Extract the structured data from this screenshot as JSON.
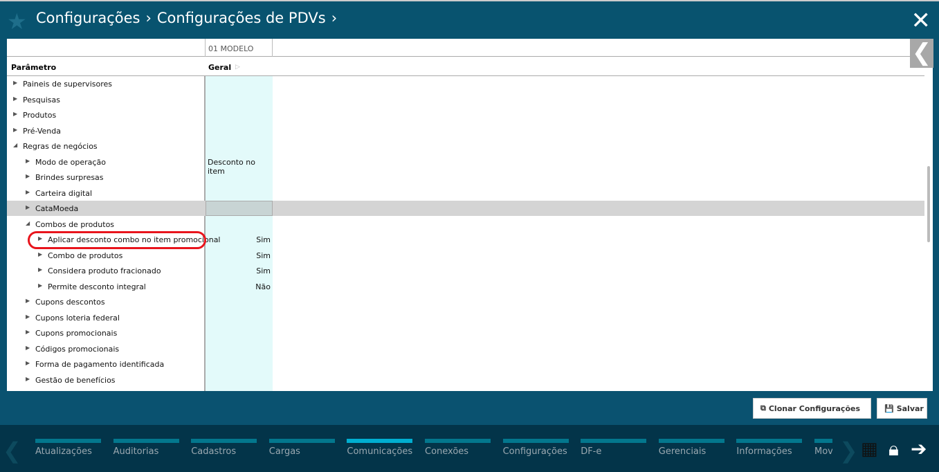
{
  "header": {
    "crumbs": [
      "Configurações",
      "›",
      "Configurações de PDVs",
      "›"
    ]
  },
  "grid": {
    "column_group": "01 MODELO",
    "param_header": "Parâmetro",
    "col_header": "Geral",
    "rows": [
      {
        "label": "Paineis de supervisores",
        "level": 0,
        "open": false,
        "value": ""
      },
      {
        "label": "Pesquisas",
        "level": 0,
        "open": false,
        "value": ""
      },
      {
        "label": "Produtos",
        "level": 0,
        "open": false,
        "value": ""
      },
      {
        "label": "Pré-Venda",
        "level": 0,
        "open": false,
        "value": ""
      },
      {
        "label": "Regras de negócios",
        "level": 0,
        "open": true,
        "value": ""
      },
      {
        "label": "Modo de operação",
        "level": 1,
        "open": false,
        "value": "Desconto no item"
      },
      {
        "label": "Brindes surpresas",
        "level": 1,
        "open": false,
        "value": ""
      },
      {
        "label": "Carteira digital",
        "level": 1,
        "open": false,
        "value": ""
      },
      {
        "label": "CataMoeda",
        "level": 1,
        "open": false,
        "value": "",
        "selected": true
      },
      {
        "label": "Combos de produtos",
        "level": 1,
        "open": true,
        "value": ""
      },
      {
        "label": "Aplicar desconto combo no item promocional",
        "level": 2,
        "open": false,
        "value": "Sim"
      },
      {
        "label": "Combo de produtos",
        "level": 2,
        "open": false,
        "value": "Sim"
      },
      {
        "label": "Considera produto fracionado",
        "level": 2,
        "open": false,
        "value": "Sim"
      },
      {
        "label": "Permite desconto integral",
        "level": 2,
        "open": false,
        "value": "Não"
      },
      {
        "label": "Cupons descontos",
        "level": 1,
        "open": false,
        "value": ""
      },
      {
        "label": "Cupons loteria federal",
        "level": 1,
        "open": false,
        "value": ""
      },
      {
        "label": "Cupons promocionais",
        "level": 1,
        "open": false,
        "value": ""
      },
      {
        "label": "Códigos promocionais",
        "level": 1,
        "open": false,
        "value": ""
      },
      {
        "label": "Forma de pagamento identificada",
        "level": 1,
        "open": false,
        "value": ""
      },
      {
        "label": "Gestão de benefícios",
        "level": 1,
        "open": false,
        "value": ""
      }
    ]
  },
  "actions": {
    "clone": "Clonar Configurações",
    "save": "Salvar"
  },
  "nav": {
    "items": [
      "Atualizações",
      "Auditorias",
      "Cadastros",
      "Cargas",
      "Comunicações",
      "Conexões",
      "Configurações",
      "DF-e",
      "Gerenciais",
      "Informações",
      "Mov"
    ],
    "active": "Comunicações"
  },
  "colors": {
    "header": "#08536f",
    "bottom": "#033449",
    "highlight": "#e8141c",
    "active_tab": "#00aed0"
  }
}
